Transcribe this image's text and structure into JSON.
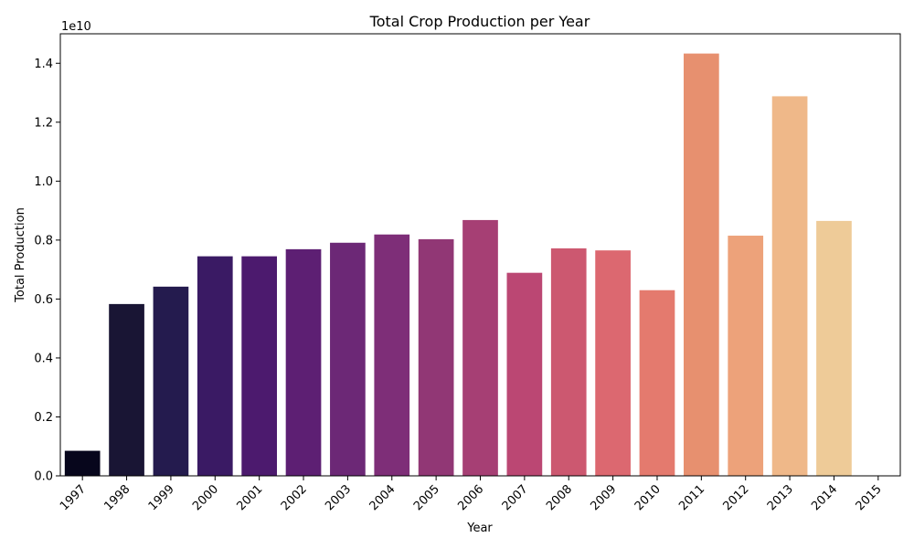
{
  "chart_data": {
    "type": "bar",
    "title": "Total Crop Production per Year",
    "xlabel": "Year",
    "ylabel": "Total Production",
    "offset_label": "1e10",
    "categories": [
      "1997",
      "1998",
      "1999",
      "2000",
      "2001",
      "2002",
      "2003",
      "2004",
      "2005",
      "2006",
      "2007",
      "2008",
      "2009",
      "2010",
      "2011",
      "2012",
      "2013",
      "2014",
      "2015"
    ],
    "values": [
      0.085,
      0.583,
      0.642,
      0.745,
      0.745,
      0.769,
      0.791,
      0.819,
      0.803,
      0.868,
      0.689,
      0.772,
      0.765,
      0.63,
      1.433,
      0.815,
      1.288,
      0.865,
      0.0
    ],
    "ylim": [
      0,
      1.5
    ],
    "yticks": [
      "0.0",
      "0.2",
      "0.4",
      "0.6",
      "0.8",
      "1.0",
      "1.2",
      "1.4"
    ],
    "colors": [
      "#07061c",
      "#191534",
      "#241b4e",
      "#3a1a64",
      "#4c1a6e",
      "#5d1f73",
      "#6c2876",
      "#7e2e78",
      "#913775",
      "#a63f74",
      "#bb4773",
      "#cc5870",
      "#dc6870",
      "#e47a6e",
      "#e7906f",
      "#eda27a",
      "#efb889",
      "#eecb98",
      "#f4dbb0"
    ],
    "grid": false
  }
}
